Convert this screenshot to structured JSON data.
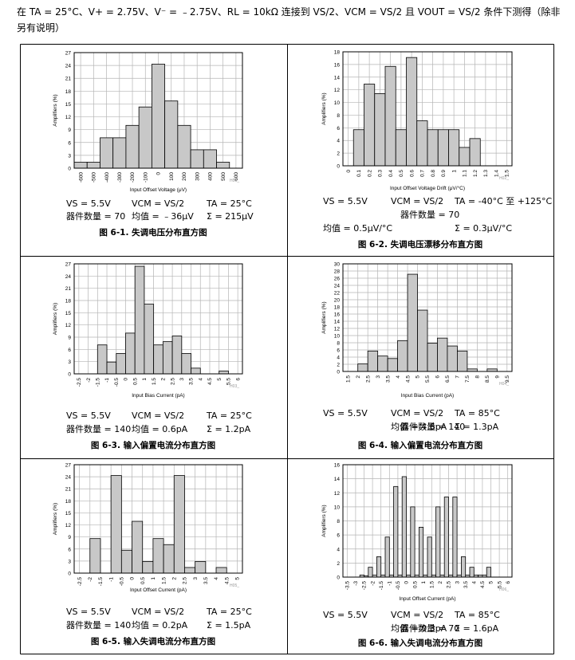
{
  "intro": {
    "text": "在 TA = 25°C、V+ = 2.75V、V⁻ = ﹣2.75V、RL = 10kΩ 连接到 VS/2、VCM = VS/2 且 VOUT = VS/2 条件下测得（除非另有说明）"
  },
  "figures": [
    {
      "id": "fig1",
      "caption": "图 6-1. 失调电压分布直方图",
      "stats": [
        [
          "VS = 5.5V",
          "VCM = VS/2",
          "TA = 25°C"
        ],
        [
          "器件数量 = 70",
          "均值 = ﹣36μV",
          "Σ = 215μV"
        ]
      ],
      "chart_data": {
        "type": "bar",
        "title": "",
        "xlabel": "Input Offset Voltage (μV)",
        "ylabel": "Amplifiers (%)",
        "ylim": [
          0,
          27
        ],
        "yticks": [
          "0",
          "3",
          "6",
          "9",
          "12",
          "15",
          "18",
          "21",
          "24",
          "27"
        ],
        "xticks": [
          "-600",
          "-500",
          "-400",
          "-300",
          "-200",
          "-100",
          "0",
          "100",
          "200",
          "300",
          "400",
          "500",
          "600"
        ],
        "bin_edges": [
          -650,
          -550,
          -450,
          -350,
          -250,
          -150,
          -50,
          50,
          150,
          250,
          350,
          450,
          550,
          650
        ],
        "values": [
          1.4,
          1.4,
          7.1,
          7.1,
          10.0,
          14.3,
          24.3,
          15.7,
          10.0,
          4.3,
          4.3,
          1.4,
          0
        ],
        "x_range": [
          -650,
          650
        ],
        "code": "H01_"
      }
    },
    {
      "id": "fig2",
      "caption": "图 6-2. 失调电压漂移分布直方图",
      "stats": [
        [
          "VS = 5.5V",
          "VCM = VS/2",
          "TA = -40°C 至 +125°C"
        ],
        [
          "器件数量 = 70",
          "",
          ""
        ],
        [
          "均值 = 0.5μV/°C",
          "",
          "Σ = 0.3μV/°C"
        ]
      ],
      "chart_data": {
        "type": "bar",
        "title": "",
        "xlabel": "Input Offset Voltage Drift (μV/°C)",
        "ylabel": "Amplifiers (%)",
        "ylim": [
          0,
          18
        ],
        "yticks": [
          "0",
          "2",
          "4",
          "6",
          "8",
          "10",
          "12",
          "14",
          "16",
          "18"
        ],
        "xticks": [
          "0",
          "0.1",
          "0.2",
          "0.3",
          "0.4",
          "0.5",
          "0.6",
          "0.7",
          "0.8",
          "0.9",
          "1",
          "1.1",
          "1.2",
          "1.3",
          "1.4",
          "1.5"
        ],
        "bin_edges": [
          0.05,
          0.15,
          0.25,
          0.35,
          0.45,
          0.55,
          0.65,
          0.75,
          0.85,
          0.95,
          1.05,
          1.15,
          1.25
        ],
        "values": [
          5.7,
          12.9,
          11.4,
          15.7,
          5.7,
          17.1,
          7.1,
          5.7,
          5.7,
          5.7,
          2.9,
          4.3
        ],
        "x_range": [
          -0.05,
          1.55
        ],
        "code": "H02_"
      }
    },
    {
      "id": "fig3",
      "caption": "图 6-3. 输入偏置电流分布直方图",
      "stats": [
        [
          "VS = 5.5V",
          "VCM = VS/2",
          "TA = 25°C"
        ],
        [
          "器件数量 = 140",
          "均值 = 0.6pA",
          "Σ = 1.2pA"
        ]
      ],
      "chart_data": {
        "type": "bar",
        "title": "",
        "xlabel": "Input Bias Current (pA)",
        "ylabel": "Amplifiers (%)",
        "ylim": [
          0,
          27
        ],
        "yticks": [
          "0",
          "3",
          "6",
          "9",
          "12",
          "15",
          "18",
          "21",
          "24",
          "27"
        ],
        "xticks": [
          "-2.5",
          "-2",
          "-1.5",
          "-1",
          "-0.5",
          "0",
          "0.5",
          "1",
          "1.5",
          "2",
          "2.5",
          "3",
          "3.5",
          "4",
          "4.5",
          "5",
          "5.5",
          "6"
        ],
        "bin_edges": [
          -1.5,
          -1,
          -0.5,
          0,
          0.5,
          1,
          1.5,
          2,
          2.5,
          3,
          3.5,
          4,
          4.5,
          5,
          5.5
        ],
        "values": [
          7.1,
          2.9,
          5.0,
          10.0,
          26.4,
          17.1,
          7.1,
          7.9,
          9.3,
          5.0,
          1.4,
          0,
          0,
          0.7
        ],
        "x_range": [
          -2.75,
          6.25
        ],
        "code": "H03_"
      }
    },
    {
      "id": "fig4",
      "caption": "图 6-4. 输入偏置电流分布直方图",
      "stats": [
        [
          "VS = 5.5V",
          "VCM = VS/2",
          "TA = 85°C"
        ],
        [
          "器件数量 = 140",
          "均值 = 4.6pA",
          "Σ = 1.3pA"
        ]
      ],
      "chart_data": {
        "type": "bar",
        "title": "",
        "xlabel": "Input Bias Current (pA)",
        "ylabel": "Amplifiers (%)",
        "ylim": [
          0,
          30
        ],
        "yticks": [
          "0",
          "2",
          "4",
          "6",
          "8",
          "10",
          "12",
          "14",
          "16",
          "18",
          "20",
          "22",
          "24",
          "26",
          "28",
          "30"
        ],
        "xticks": [
          "1.5",
          "2",
          "2.5",
          "3",
          "3.5",
          "4",
          "4.5",
          "5",
          "5.5",
          "6",
          "6.5",
          "7",
          "7.5",
          "8",
          "8.5",
          "9",
          "9.5"
        ],
        "bin_edges": [
          2,
          2.5,
          3,
          3.5,
          4,
          4.5,
          5,
          5.5,
          6,
          6.5,
          7,
          7.5,
          8,
          8.5,
          9
        ],
        "values": [
          2.1,
          5.7,
          4.3,
          3.6,
          8.6,
          27.1,
          17.1,
          7.9,
          9.3,
          7.1,
          5.7,
          0.7,
          0,
          0.7
        ],
        "x_range": [
          1.25,
          9.75
        ],
        "code": "H04_"
      }
    },
    {
      "id": "fig5",
      "caption": "图 6-5. 输入失调电流分布直方图",
      "stats": [
        [
          "VS = 5.5V",
          "VCM = VS/2",
          "TA = 25°C"
        ],
        [
          "器件数量 = 140",
          "均值 = 0.2pA",
          "Σ = 1.5pA"
        ]
      ],
      "chart_data": {
        "type": "bar",
        "title": "",
        "xlabel": "Input Offset Current (pA)",
        "ylabel": "Amplifiers (%)",
        "ylim": [
          0,
          27
        ],
        "yticks": [
          "0",
          "3",
          "6",
          "9",
          "12",
          "15",
          "18",
          "21",
          "24",
          "27"
        ],
        "xticks": [
          "-2.5",
          "-2",
          "-1.5",
          "-1",
          "-0.5",
          "0",
          "0.5",
          "1",
          "1.5",
          "2",
          "2.5",
          "3",
          "3.5",
          "4",
          "4.5",
          "5"
        ],
        "bin_edges": [
          -2,
          -1.5,
          -1,
          -0.5,
          0,
          0.5,
          1,
          1.5,
          2,
          2.5,
          3,
          3.5,
          4,
          4.5
        ],
        "values": [
          8.6,
          0,
          24.3,
          5.7,
          12.9,
          2.9,
          8.6,
          7.1,
          24.3,
          1.4,
          2.9,
          0,
          1.4
        ],
        "x_range": [
          -2.75,
          5.25
        ],
        "code": "H05_"
      }
    },
    {
      "id": "fig6",
      "caption": "图 6-6. 输入失调电流分布直方图",
      "stats": [
        [
          "VS = 5.5V",
          "VCM = VS/2",
          "TA = 85°C"
        ],
        [
          "器件数量 = 70",
          "均值 = 0.3pA",
          "Σ = 1.6pA"
        ]
      ],
      "chart_data": {
        "type": "bar",
        "title": "",
        "xlabel": "Input Offset Current (pA)",
        "ylabel": "Amplifiers (%)",
        "ylim": [
          0,
          16
        ],
        "yticks": [
          "0",
          "2",
          "4",
          "6",
          "8",
          "10",
          "12",
          "14",
          "16"
        ],
        "xticks": [
          "-3.5",
          "-3",
          "-2.5",
          "-2",
          "-1.5",
          "-1",
          "-0.5",
          "0",
          "0.5",
          "1",
          "1.5",
          "2",
          "2.5",
          "3",
          "3.5",
          "4",
          "4.5",
          "5",
          "5.5",
          "6"
        ],
        "bin_edges": [
          -2.75,
          -2.5,
          -2.25,
          -2,
          -1.75,
          -1.5,
          -1.25,
          -1,
          -0.75,
          -0.5,
          -0.25,
          0,
          0.25,
          0.5,
          0.75,
          1,
          1.25,
          1.5,
          1.75,
          2,
          2.25,
          2.5,
          2.75,
          3,
          3.25,
          3.5,
          3.75,
          4,
          4.25,
          4.5,
          4.75,
          5
        ],
        "values": [
          0.3,
          0.2,
          1.4,
          0.3,
          2.9,
          0.3,
          5.7,
          0.3,
          12.9,
          0.3,
          14.3,
          0.3,
          10.0,
          0.3,
          7.1,
          0.3,
          5.7,
          0.3,
          10.0,
          0.3,
          11.4,
          0.3,
          11.4,
          0.3,
          2.9,
          0.3,
          1.4,
          0.3,
          0.3,
          0.3,
          1.4
        ],
        "x_range": [
          -3.75,
          6.25
        ],
        "code": "H06_"
      }
    }
  ]
}
